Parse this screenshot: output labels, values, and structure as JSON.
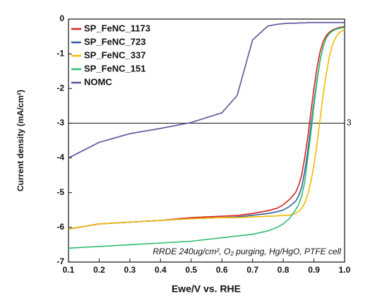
{
  "chart_data": {
    "type": "line",
    "x_label": "Ewe/V vs. RHE",
    "y_label": "Current density (mA/cm²)",
    "annotation": "RRDE 240ug/cm², O₂ purging, Hg/HgO, PTFE cell",
    "reference_line": {
      "value": -3,
      "label": "3"
    },
    "legend": "top-left",
    "xlim": [
      0.1,
      1.0
    ],
    "ylim": [
      -7,
      0
    ],
    "xticks": [
      0.1,
      0.2,
      0.3,
      0.4,
      0.5,
      0.6,
      0.7,
      0.8,
      0.9,
      {
        "value": 1.0,
        "label": "1.0"
      }
    ],
    "yticks": [
      0,
      -1,
      -2,
      -3,
      -4,
      -5,
      -6,
      -7
    ],
    "x": [
      0.1,
      0.2,
      0.3,
      0.4,
      0.5,
      0.6,
      0.65,
      0.7,
      0.75,
      0.78,
      0.8,
      0.82,
      0.84,
      0.85,
      0.86,
      0.87,
      0.88,
      0.89,
      0.9,
      0.91,
      0.92,
      0.93,
      0.94,
      0.95,
      0.96,
      0.97,
      0.98,
      0.99,
      1.0
    ],
    "series": [
      {
        "name": "SP_FeNC_1173",
        "color": "#d4201e",
        "values": [
          -6.05,
          -5.9,
          -5.85,
          -5.8,
          -5.72,
          -5.68,
          -5.66,
          -5.6,
          -5.52,
          -5.45,
          -5.35,
          -5.2,
          -5.0,
          -4.8,
          -4.5,
          -4.0,
          -3.4,
          -2.7,
          -2.0,
          -1.4,
          -0.95,
          -0.65,
          -0.48,
          -0.38,
          -0.32,
          -0.28,
          -0.25,
          -0.23,
          -0.22
        ]
      },
      {
        "name": "SP_FeNC_723",
        "color": "#2e5e9e",
        "values": [
          -6.05,
          -5.9,
          -5.85,
          -5.8,
          -5.75,
          -5.72,
          -5.7,
          -5.65,
          -5.6,
          -5.55,
          -5.5,
          -5.4,
          -5.25,
          -5.1,
          -4.85,
          -4.4,
          -3.8,
          -3.1,
          -2.4,
          -1.75,
          -1.2,
          -0.8,
          -0.55,
          -0.42,
          -0.34,
          -0.3,
          -0.27,
          -0.25,
          -0.24
        ]
      },
      {
        "name": "SP_FeNC_337",
        "color": "#f5b800",
        "values": [
          -6.05,
          -5.9,
          -5.85,
          -5.8,
          -5.75,
          -5.72,
          -5.72,
          -5.7,
          -5.68,
          -5.67,
          -5.66,
          -5.65,
          -5.6,
          -5.55,
          -5.45,
          -5.3,
          -5.05,
          -4.7,
          -4.2,
          -3.6,
          -2.9,
          -2.2,
          -1.6,
          -1.1,
          -0.75,
          -0.55,
          -0.42,
          -0.35,
          -0.3
        ]
      },
      {
        "name": "SP_FeNC_151",
        "color": "#2ebd6e",
        "values": [
          -6.6,
          -6.55,
          -6.5,
          -6.45,
          -6.4,
          -6.3,
          -6.25,
          -6.2,
          -6.1,
          -6.0,
          -5.9,
          -5.75,
          -5.5,
          -5.35,
          -5.1,
          -4.7,
          -4.0,
          -3.3,
          -2.5,
          -1.8,
          -1.2,
          -0.8,
          -0.55,
          -0.42,
          -0.35,
          -0.3,
          -0.27,
          -0.25,
          -0.24
        ]
      },
      {
        "name": "NOMC",
        "color": "#55559a",
        "values": [
          -4.0,
          -3.55,
          -3.3,
          -3.15,
          -2.98,
          -2.7,
          -2.2,
          -0.6,
          -0.2,
          -0.15,
          -0.13,
          -0.12,
          -0.12,
          -0.11,
          -0.11,
          -0.11,
          -0.1,
          -0.1,
          -0.1,
          -0.1,
          -0.1,
          -0.1,
          -0.1,
          -0.1,
          -0.1,
          -0.1,
          -0.1,
          -0.1,
          -0.1
        ]
      }
    ]
  }
}
